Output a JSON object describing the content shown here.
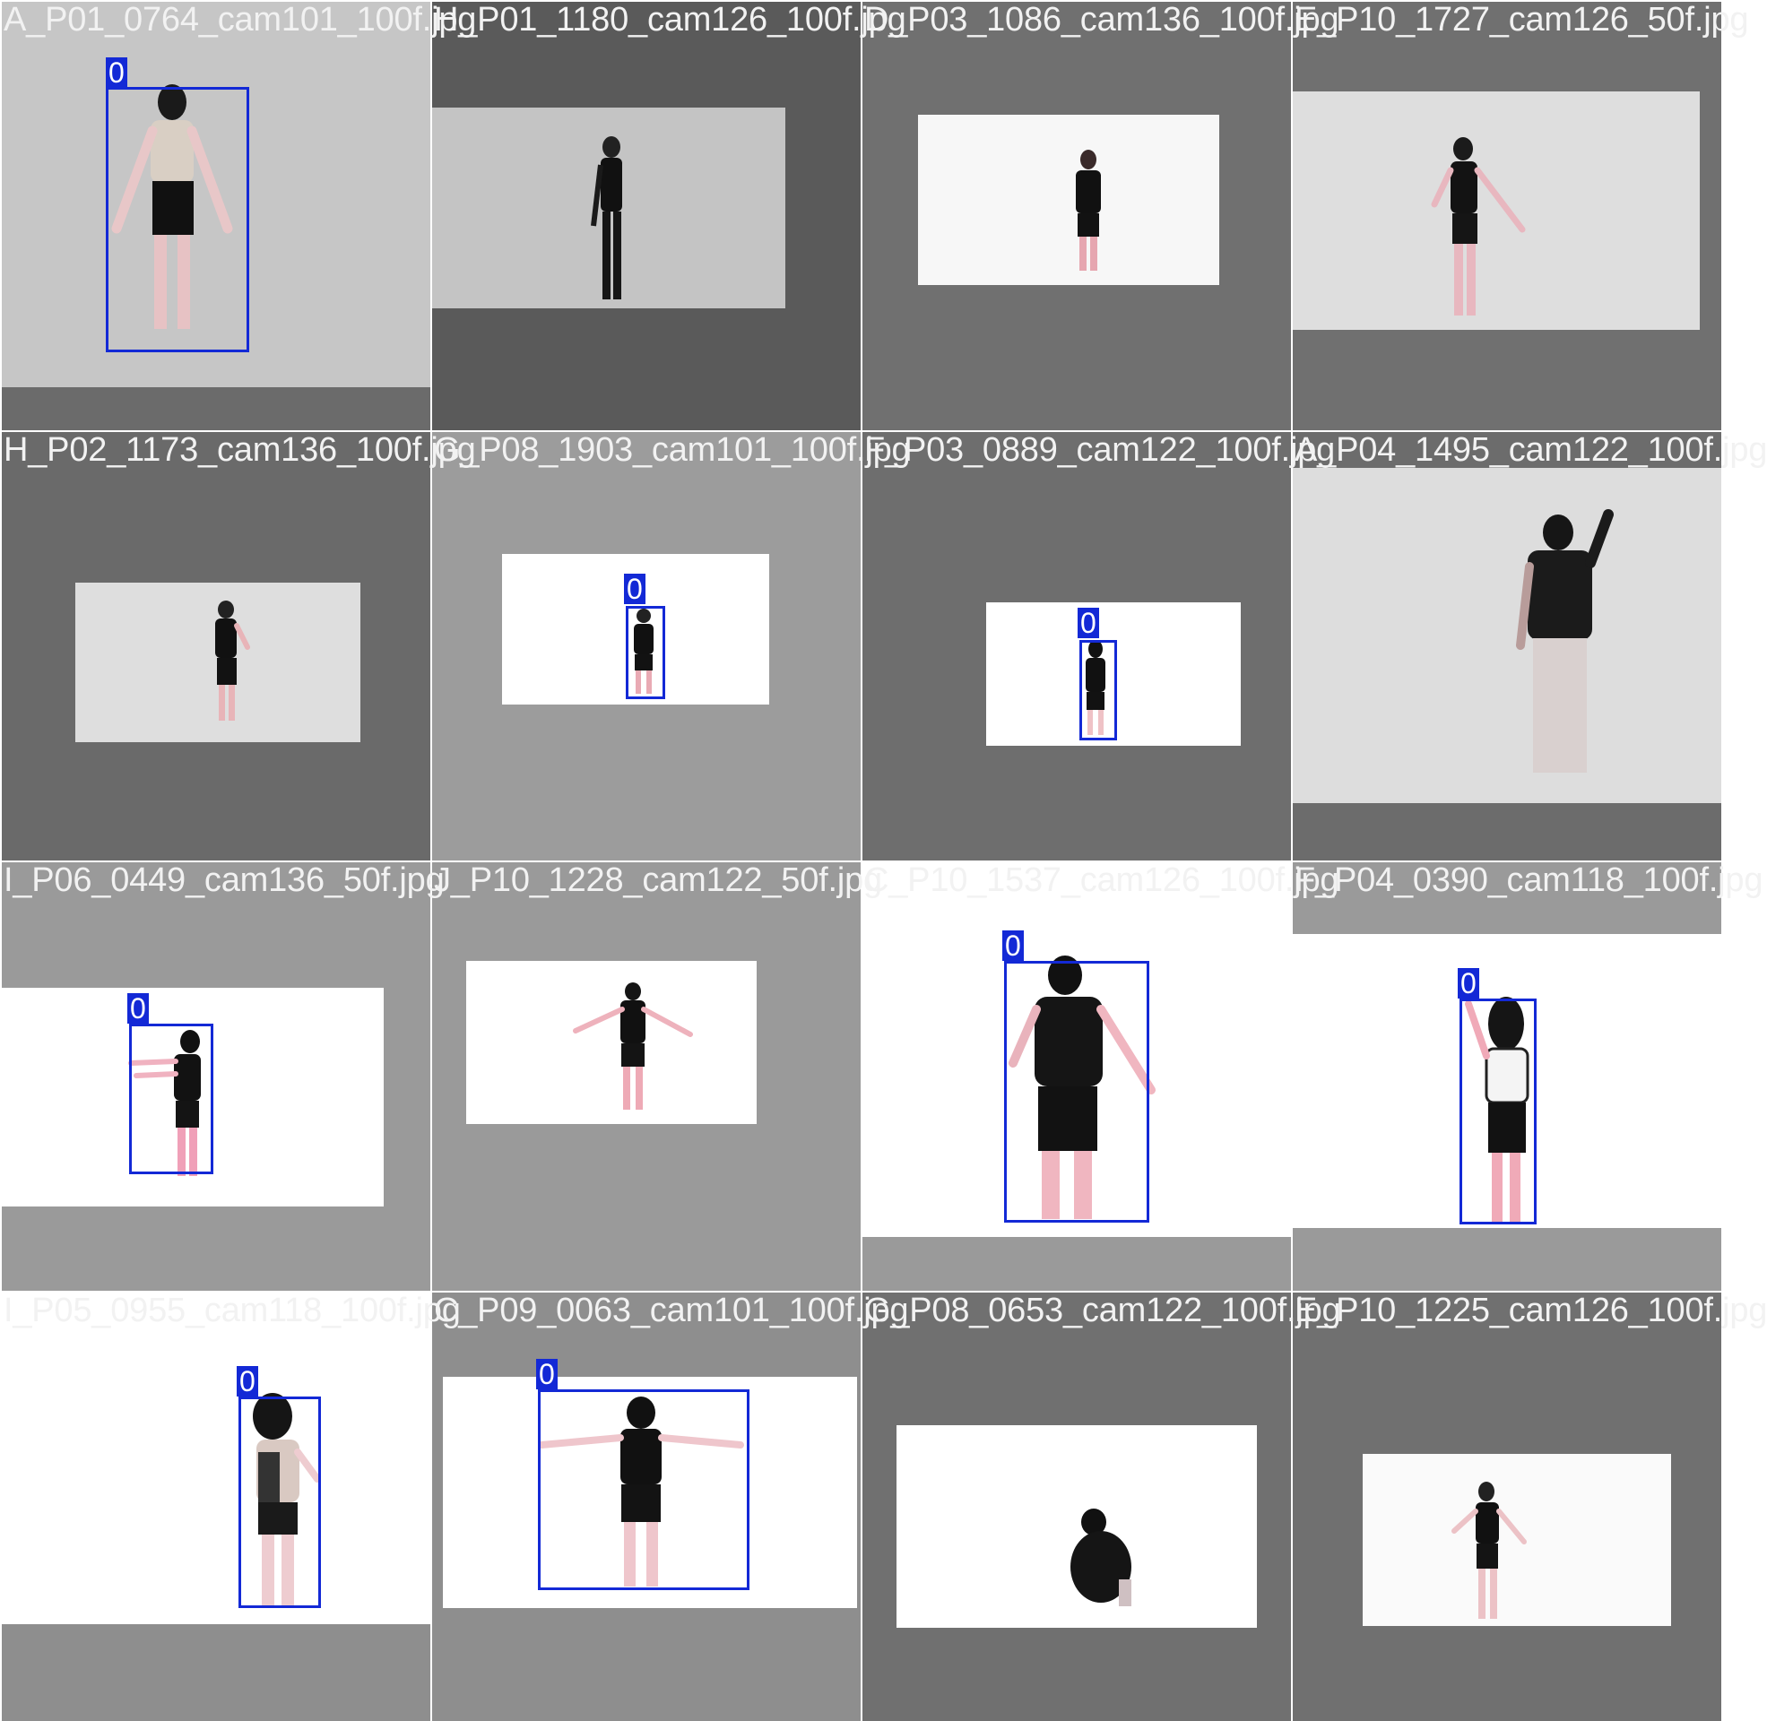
{
  "mosaic": {
    "tiles": [
      {
        "name": "A_P01_0764_cam101_100f.jpg",
        "detections": [
          {
            "class_label": "0"
          }
        ]
      },
      {
        "name": "H_P01_1180_cam126_100f.jpg",
        "detections": []
      },
      {
        "name": "D_P03_1086_cam136_100f.jpg",
        "detections": []
      },
      {
        "name": "E_P10_1727_cam126_50f.jpg",
        "detections": []
      },
      {
        "name": "H_P02_1173_cam136_100f.jpg",
        "detections": []
      },
      {
        "name": "G_P08_1903_cam101_100f.jpg",
        "detections": [
          {
            "class_label": "0"
          }
        ]
      },
      {
        "name": "F_P03_0889_cam122_100f.jpg",
        "detections": [
          {
            "class_label": "0"
          }
        ]
      },
      {
        "name": "A_P04_1495_cam122_100f.jpg",
        "detections": []
      },
      {
        "name": "I_P06_0449_cam136_50f.jpg",
        "detections": [
          {
            "class_label": "0"
          }
        ]
      },
      {
        "name": "J_P10_1228_cam122_50f.jpg",
        "detections": []
      },
      {
        "name": "C_P10_1537_cam126_100f.jpg",
        "detections": [
          {
            "class_label": "0"
          }
        ]
      },
      {
        "name": "F_P04_0390_cam118_100f.jpg",
        "detections": [
          {
            "class_label": "0"
          }
        ]
      },
      {
        "name": "I_P05_0955_cam118_100f.jpg",
        "detections": [
          {
            "class_label": "0"
          }
        ]
      },
      {
        "name": "C_P09_0063_cam101_100f.jpg",
        "detections": [
          {
            "class_label": "0"
          }
        ]
      },
      {
        "name": "G_P08_0653_cam122_100f.jpg",
        "detections": []
      },
      {
        "name": "E_P10_1225_cam126_100f.jpg",
        "detections": []
      }
    ]
  },
  "colors": {
    "detection_box": "#1329d6",
    "tile_name_text": "#f2f2f2"
  }
}
